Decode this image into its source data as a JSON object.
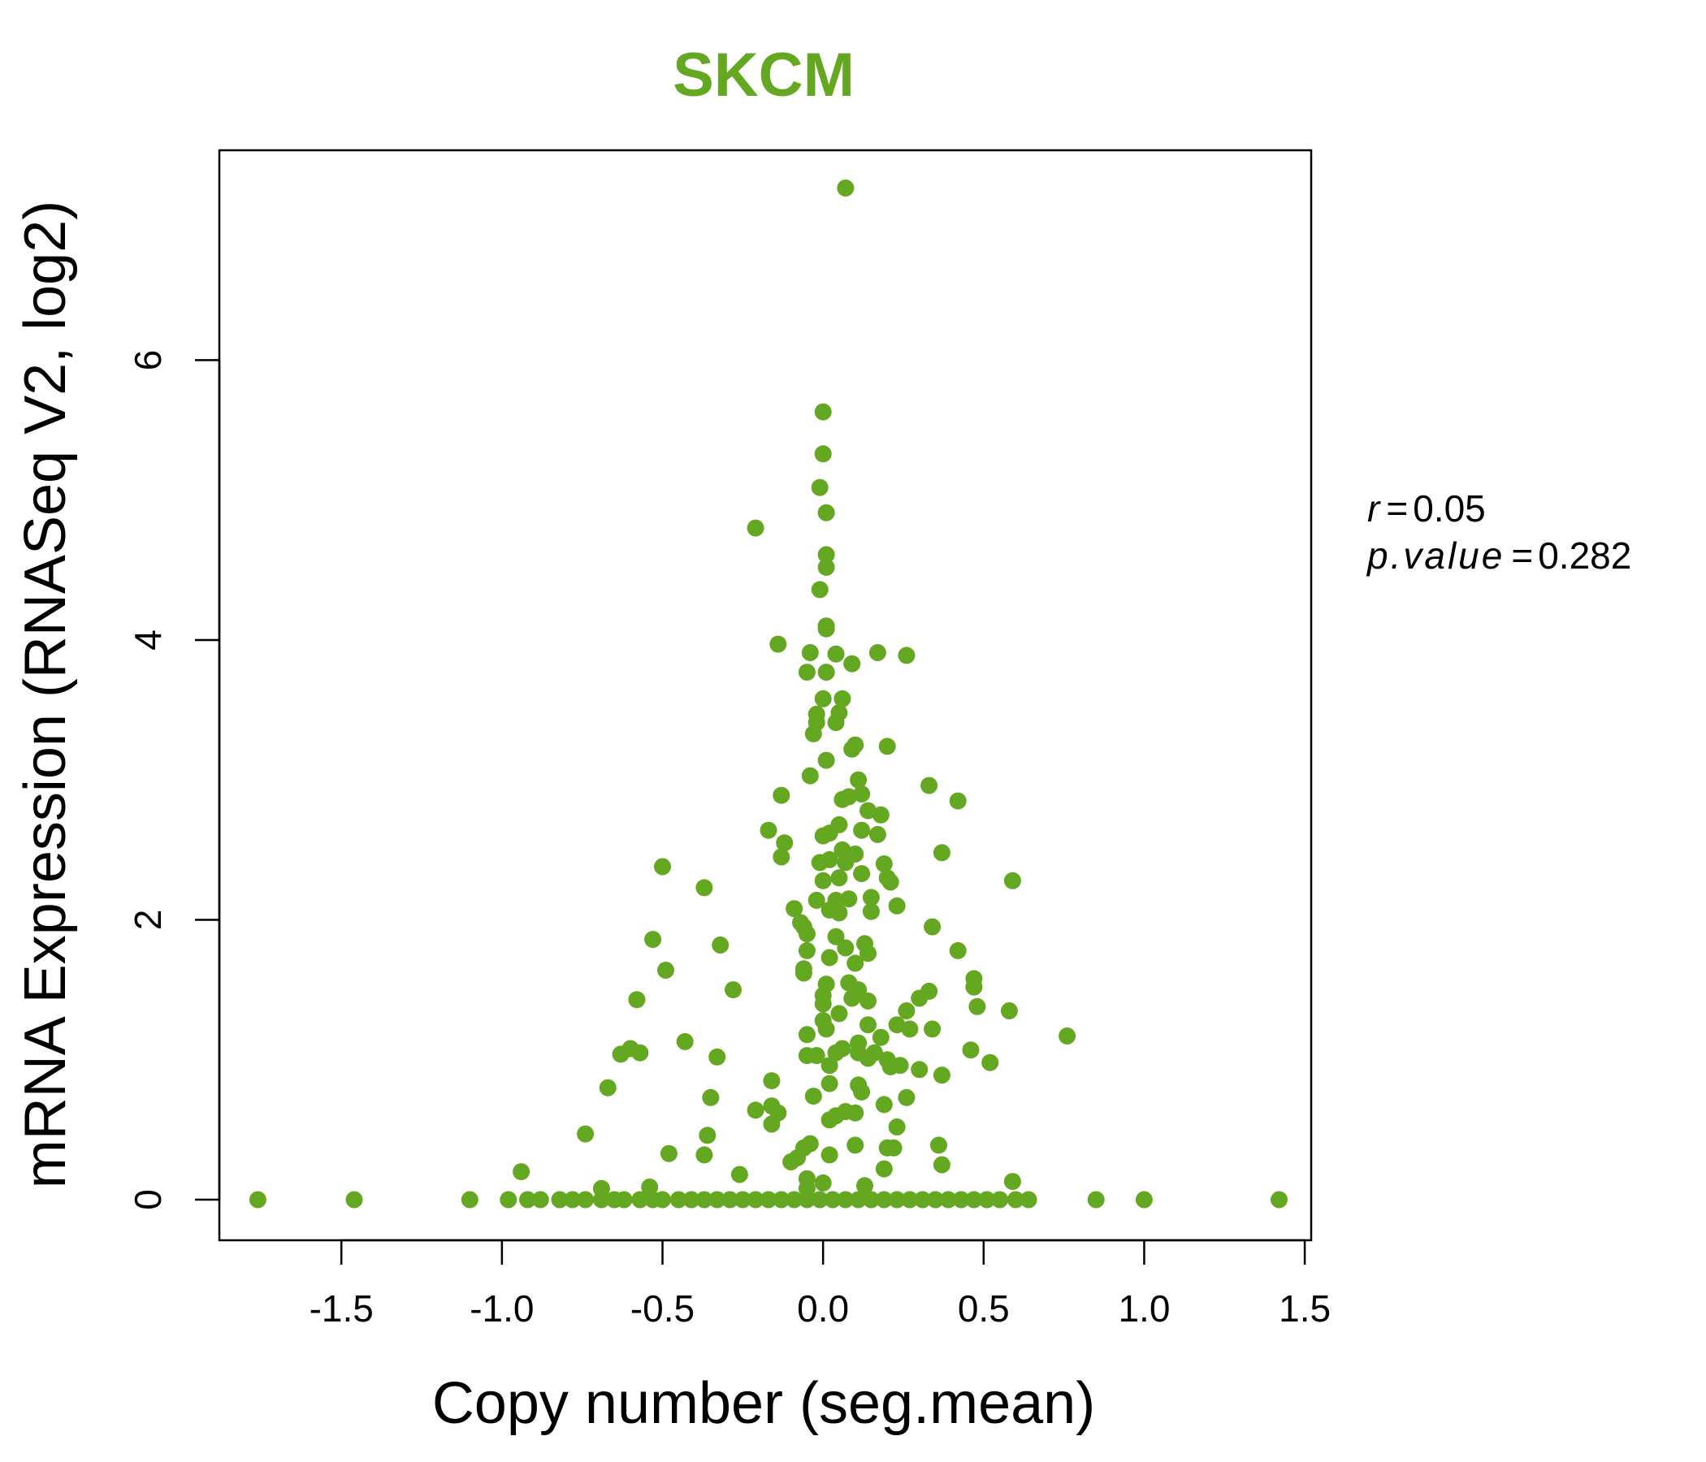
{
  "colors": {
    "accent": "#64A720",
    "axis": "#000000"
  },
  "stats": {
    "r_label": "r",
    "r_value": "0.05",
    "p_label": "p.value",
    "p_value": "0.282"
  },
  "chart_data": {
    "type": "scatter",
    "title": "SKCM",
    "xlabel": "Copy number (seg.mean)",
    "ylabel": "mRNA Expression (RNASeq V2, log2)",
    "xlim": [
      -1.88,
      1.52
    ],
    "ylim": [
      -0.29,
      7.5
    ],
    "xticks": [
      -1.5,
      -1.0,
      -0.5,
      0.0,
      0.5,
      1.0,
      1.5
    ],
    "xtick_labels": [
      "-1.5",
      "-1.0",
      "-0.5",
      "0.0",
      "0.5",
      "1.0",
      "1.5"
    ],
    "yticks": [
      0,
      2,
      4,
      6
    ],
    "ytick_labels": [
      "0",
      "2",
      "4",
      "6"
    ],
    "grid": false,
    "points": [
      [
        0.07,
        7.23
      ],
      [
        0.0,
        5.63
      ],
      [
        0.0,
        5.33
      ],
      [
        -0.01,
        5.09
      ],
      [
        0.01,
        4.91
      ],
      [
        -0.21,
        4.8
      ],
      [
        0.01,
        4.61
      ],
      [
        0.01,
        4.52
      ],
      [
        -0.01,
        4.36
      ],
      [
        0.01,
        4.1
      ],
      [
        0.01,
        4.08
      ],
      [
        -0.14,
        3.97
      ],
      [
        -0.04,
        3.91
      ],
      [
        0.04,
        3.9
      ],
      [
        0.17,
        3.91
      ],
      [
        0.26,
        3.89
      ],
      [
        0.09,
        3.83
      ],
      [
        -0.05,
        3.77
      ],
      [
        0.01,
        3.77
      ],
      [
        0.0,
        3.58
      ],
      [
        0.06,
        3.58
      ],
      [
        0.05,
        3.48
      ],
      [
        -0.02,
        3.47
      ],
      [
        -0.02,
        3.41
      ],
      [
        0.04,
        3.41
      ],
      [
        -0.03,
        3.33
      ],
      [
        0.1,
        3.25
      ],
      [
        0.2,
        3.24
      ],
      [
        0.09,
        3.22
      ],
      [
        0.01,
        3.14
      ],
      [
        -0.04,
        3.03
      ],
      [
        0.11,
        3.0
      ],
      [
        0.33,
        2.96
      ],
      [
        -0.13,
        2.89
      ],
      [
        0.08,
        2.88
      ],
      [
        0.12,
        2.9
      ],
      [
        0.06,
        2.86
      ],
      [
        0.42,
        2.85
      ],
      [
        0.14,
        2.78
      ],
      [
        0.18,
        2.75
      ],
      [
        -0.17,
        2.64
      ],
      [
        0.02,
        2.62
      ],
      [
        0.05,
        2.68
      ],
      [
        0.12,
        2.64
      ],
      [
        0.17,
        2.61
      ],
      [
        0.0,
        2.6
      ],
      [
        -0.12,
        2.55
      ],
      [
        0.06,
        2.5
      ],
      [
        0.37,
        2.48
      ],
      [
        0.1,
        2.47
      ],
      [
        -0.13,
        2.45
      ],
      [
        0.02,
        2.43
      ],
      [
        -0.01,
        2.41
      ],
      [
        0.07,
        2.41
      ],
      [
        0.19,
        2.4
      ],
      [
        -0.5,
        2.38
      ],
      [
        0.12,
        2.33
      ],
      [
        0.05,
        2.3
      ],
      [
        0.2,
        2.3
      ],
      [
        0.59,
        2.28
      ],
      [
        0.21,
        2.27
      ],
      [
        -0.37,
        2.23
      ],
      [
        0.0,
        2.28
      ],
      [
        0.15,
        2.16
      ],
      [
        0.04,
        2.14
      ],
      [
        0.08,
        2.15
      ],
      [
        -0.02,
        2.14
      ],
      [
        0.23,
        2.1
      ],
      [
        0.02,
        2.07
      ],
      [
        0.05,
        2.05
      ],
      [
        -0.09,
        2.08
      ],
      [
        0.15,
        2.06
      ],
      [
        -0.07,
        1.98
      ],
      [
        -0.06,
        1.95
      ],
      [
        0.34,
        1.95
      ],
      [
        0.04,
        1.88
      ],
      [
        -0.05,
        1.9
      ],
      [
        0.13,
        1.83
      ],
      [
        -0.53,
        1.86
      ],
      [
        -0.32,
        1.82
      ],
      [
        0.07,
        1.8
      ],
      [
        0.14,
        1.76
      ],
      [
        0.42,
        1.78
      ],
      [
        -0.05,
        1.78
      ],
      [
        0.02,
        1.73
      ],
      [
        0.1,
        1.69
      ],
      [
        -0.49,
        1.64
      ],
      [
        -0.06,
        1.65
      ],
      [
        -0.06,
        1.62
      ],
      [
        0.47,
        1.58
      ],
      [
        0.08,
        1.55
      ],
      [
        0.01,
        1.54
      ],
      [
        0.47,
        1.52
      ],
      [
        -0.28,
        1.5
      ],
      [
        0.11,
        1.5
      ],
      [
        0.33,
        1.49
      ],
      [
        0.0,
        1.46
      ],
      [
        0.09,
        1.44
      ],
      [
        0.14,
        1.42
      ],
      [
        -0.58,
        1.43
      ],
      [
        0.3,
        1.44
      ],
      [
        0.48,
        1.38
      ],
      [
        0.0,
        1.4
      ],
      [
        0.26,
        1.35
      ],
      [
        0.58,
        1.35
      ],
      [
        0.05,
        1.33
      ],
      [
        0.0,
        1.28
      ],
      [
        0.14,
        1.25
      ],
      [
        0.23,
        1.25
      ],
      [
        0.27,
        1.22
      ],
      [
        0.34,
        1.22
      ],
      [
        0.01,
        1.22
      ],
      [
        -0.05,
        1.18
      ],
      [
        0.18,
        1.16
      ],
      [
        0.76,
        1.17
      ],
      [
        -0.43,
        1.13
      ],
      [
        0.06,
        1.08
      ],
      [
        0.11,
        1.12
      ],
      [
        -0.6,
        1.08
      ],
      [
        0.46,
        1.07
      ],
      [
        -0.57,
        1.05
      ],
      [
        -0.63,
        1.04
      ],
      [
        0.16,
        1.05
      ],
      [
        0.04,
        1.05
      ],
      [
        0.11,
        1.05
      ],
      [
        -0.05,
        1.03
      ],
      [
        -0.02,
        1.03
      ],
      [
        -0.33,
        1.02
      ],
      [
        0.14,
        1.01
      ],
      [
        0.2,
        1.0
      ],
      [
        0.52,
        0.98
      ],
      [
        0.24,
        0.96
      ],
      [
        0.02,
        0.96
      ],
      [
        0.21,
        0.95
      ],
      [
        0.3,
        0.93
      ],
      [
        0.37,
        0.89
      ],
      [
        -0.16,
        0.85
      ],
      [
        0.02,
        0.83
      ],
      [
        0.11,
        0.82
      ],
      [
        -0.67,
        0.8
      ],
      [
        0.12,
        0.77
      ],
      [
        -0.03,
        0.74
      ],
      [
        0.26,
        0.73
      ],
      [
        -0.35,
        0.73
      ],
      [
        -0.16,
        0.67
      ],
      [
        0.19,
        0.68
      ],
      [
        0.07,
        0.63
      ],
      [
        -0.14,
        0.62
      ],
      [
        -0.21,
        0.64
      ],
      [
        0.1,
        0.62
      ],
      [
        0.04,
        0.6
      ],
      [
        0.02,
        0.57
      ],
      [
        -0.16,
        0.54
      ],
      [
        0.23,
        0.52
      ],
      [
        -0.74,
        0.47
      ],
      [
        -0.36,
        0.46
      ],
      [
        0.22,
        0.37
      ],
      [
        0.2,
        0.37
      ],
      [
        0.36,
        0.39
      ],
      [
        -0.04,
        0.4
      ],
      [
        0.1,
        0.39
      ],
      [
        -0.06,
        0.37
      ],
      [
        0.02,
        0.32
      ],
      [
        -0.48,
        0.33
      ],
      [
        -0.37,
        0.32
      ],
      [
        -0.08,
        0.3
      ],
      [
        -0.1,
        0.27
      ],
      [
        0.37,
        0.25
      ],
      [
        0.19,
        0.22
      ],
      [
        -0.26,
        0.18
      ],
      [
        -0.05,
        0.15
      ],
      [
        -0.94,
        0.2
      ],
      [
        0.59,
        0.13
      ],
      [
        0.0,
        0.12
      ],
      [
        0.13,
        0.1
      ],
      [
        -0.54,
        0.09
      ],
      [
        -0.69,
        0.08
      ],
      [
        -0.05,
        0.08
      ],
      [
        -1.76,
        0.0
      ],
      [
        -1.46,
        0.0
      ],
      [
        -1.1,
        0.0
      ],
      [
        -0.98,
        0.0
      ],
      [
        -0.92,
        0.0
      ],
      [
        -0.88,
        0.0
      ],
      [
        -0.82,
        0.0
      ],
      [
        -0.78,
        0.0
      ],
      [
        -0.74,
        0.0
      ],
      [
        -0.69,
        0.0
      ],
      [
        -0.65,
        0.0
      ],
      [
        -0.62,
        0.0
      ],
      [
        -0.57,
        0.0
      ],
      [
        -0.53,
        0.0
      ],
      [
        -0.5,
        0.0
      ],
      [
        -0.45,
        0.0
      ],
      [
        -0.41,
        0.0
      ],
      [
        -0.37,
        0.0
      ],
      [
        -0.33,
        0.0
      ],
      [
        -0.29,
        0.0
      ],
      [
        -0.25,
        0.0
      ],
      [
        -0.21,
        0.0
      ],
      [
        -0.17,
        0.0
      ],
      [
        -0.13,
        0.0
      ],
      [
        -0.09,
        0.0
      ],
      [
        -0.05,
        0.0
      ],
      [
        -0.01,
        0.0
      ],
      [
        0.03,
        0.0
      ],
      [
        0.07,
        0.0
      ],
      [
        0.11,
        0.0
      ],
      [
        0.15,
        0.0
      ],
      [
        0.19,
        0.0
      ],
      [
        0.23,
        0.0
      ],
      [
        0.27,
        0.0
      ],
      [
        0.31,
        0.0
      ],
      [
        0.35,
        0.0
      ],
      [
        0.39,
        0.0
      ],
      [
        0.43,
        0.0
      ],
      [
        0.47,
        0.0
      ],
      [
        0.51,
        0.0
      ],
      [
        0.55,
        0.0
      ],
      [
        0.6,
        0.0
      ],
      [
        0.64,
        0.0
      ],
      [
        0.85,
        0.0
      ],
      [
        1.0,
        0.0
      ],
      [
        1.42,
        0.0
      ]
    ]
  }
}
